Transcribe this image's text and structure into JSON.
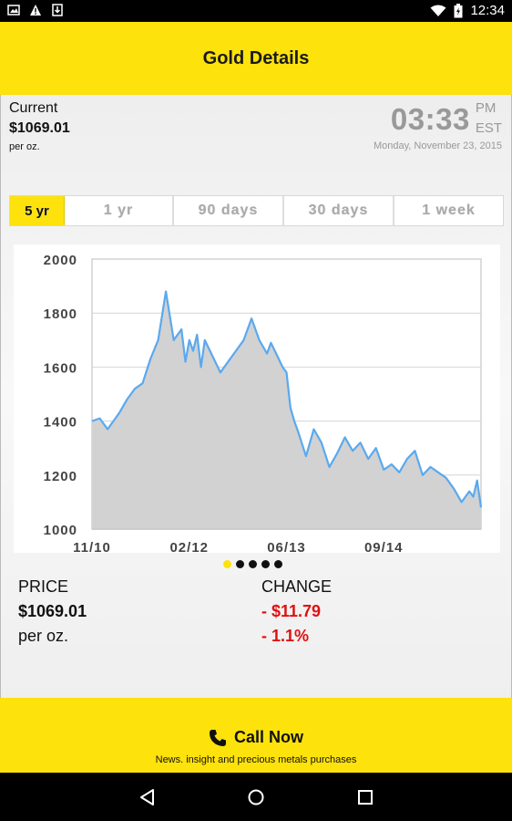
{
  "status_bar": {
    "time": "12:34",
    "icons": [
      "image-icon",
      "warning-icon",
      "download-icon",
      "wifi-icon",
      "battery-charging-icon"
    ]
  },
  "header": {
    "title": "Gold Details"
  },
  "current": {
    "label": "Current",
    "price": "$1069.01",
    "unit": "per oz.",
    "time": "03:33",
    "ampm": "PM",
    "tz": "EST",
    "date": "Monday, November 23, 2015"
  },
  "range_tabs": [
    {
      "label": "5 yr",
      "active": true
    },
    {
      "label": "1 yr",
      "active": false
    },
    {
      "label": "90 days",
      "active": false
    },
    {
      "label": "30 days",
      "active": false
    },
    {
      "label": "1 week",
      "active": false
    }
  ],
  "chart_data": {
    "type": "area",
    "title": "",
    "xlabel": "",
    "ylabel": "",
    "ylim": [
      1000,
      2000
    ],
    "y_ticks": [
      "2000",
      "1800",
      "1600",
      "1400",
      "1200",
      "1000"
    ],
    "x_ticks": [
      "11/10",
      "02/12",
      "06/13",
      "09/14"
    ],
    "x_tick_positions": [
      0.0,
      0.25,
      0.5,
      0.75
    ],
    "grid": true,
    "line_color": "#5aa9ef",
    "fill_color": "#d2d2d2",
    "x": [
      0,
      0.02,
      0.04,
      0.05,
      0.07,
      0.09,
      0.11,
      0.13,
      0.15,
      0.17,
      0.19,
      0.21,
      0.23,
      0.24,
      0.25,
      0.26,
      0.27,
      0.28,
      0.29,
      0.31,
      0.33,
      0.35,
      0.37,
      0.39,
      0.41,
      0.43,
      0.45,
      0.46,
      0.47,
      0.49,
      0.5,
      0.51,
      0.52,
      0.53,
      0.55,
      0.57,
      0.59,
      0.61,
      0.63,
      0.65,
      0.67,
      0.69,
      0.71,
      0.73,
      0.75,
      0.77,
      0.79,
      0.81,
      0.83,
      0.85,
      0.87,
      0.89,
      0.91,
      0.93,
      0.95,
      0.97,
      0.98,
      0.99,
      1.0
    ],
    "values": [
      1400,
      1410,
      1370,
      1390,
      1430,
      1480,
      1520,
      1540,
      1630,
      1700,
      1880,
      1700,
      1740,
      1620,
      1700,
      1660,
      1720,
      1600,
      1700,
      1640,
      1580,
      1620,
      1660,
      1700,
      1780,
      1700,
      1650,
      1690,
      1660,
      1600,
      1580,
      1450,
      1400,
      1360,
      1270,
      1370,
      1320,
      1230,
      1280,
      1340,
      1290,
      1320,
      1260,
      1300,
      1220,
      1240,
      1210,
      1260,
      1290,
      1200,
      1230,
      1210,
      1190,
      1150,
      1100,
      1140,
      1120,
      1180,
      1080
    ]
  },
  "pager": {
    "count": 5,
    "active_index": 0
  },
  "summary": {
    "price_label": "PRICE",
    "price_value": "$1069.01",
    "price_unit": "per oz.",
    "change_label": "CHANGE",
    "change_value": "- $11.79",
    "change_percent": "- 1.1%"
  },
  "footer": {
    "call_label": "Call Now",
    "subtitle": "News. insight and precious metals purchases"
  },
  "colors": {
    "accent": "#fde20c",
    "negative": "#e11010"
  }
}
